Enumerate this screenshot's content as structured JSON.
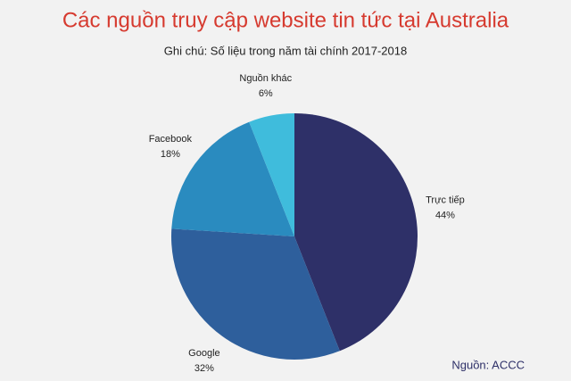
{
  "chart_data": {
    "type": "pie",
    "title": "Các nguồn truy cập website tin tức tại Australia",
    "subtitle": "Ghi chú: Số liệu trong năm tài chính 2017-2018",
    "source": "Nguồn: ACCC",
    "categories": [
      "Trực tiếp",
      "Google",
      "Facebook",
      "Nguồn khác"
    ],
    "values": [
      44,
      32,
      18,
      6
    ],
    "value_labels": [
      "44%",
      "32%",
      "18%",
      "6%"
    ],
    "colors": [
      "#2e3068",
      "#2e5f9c",
      "#2a8bbf",
      "#3fbcdc"
    ]
  }
}
